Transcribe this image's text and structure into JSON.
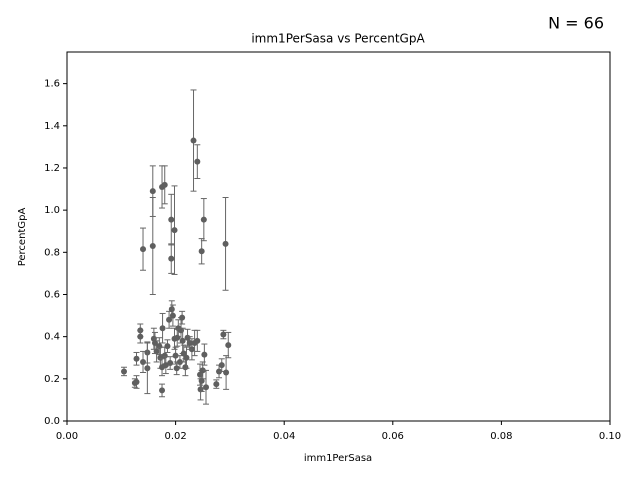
{
  "chart_data": {
    "type": "errorbar_scatter",
    "title": "imm1PerSasa vs PercentGpA",
    "annotation": "N = 66",
    "xlabel": "imm1PerSasa",
    "ylabel": "PercentGpA",
    "color": "#5f5f5f",
    "error_color": "#666666",
    "xlim": [
      0,
      0.1
    ],
    "ylim": [
      0,
      1.75
    ],
    "xticks": [
      {
        "value": 0,
        "label": "0.00"
      },
      {
        "value": 0.02,
        "label": "0.02"
      },
      {
        "value": 0.04,
        "label": "0.04"
      },
      {
        "value": 0.06,
        "label": "0.06"
      },
      {
        "value": 0.08,
        "label": "0.08"
      },
      {
        "value": 0.1,
        "label": "0.10"
      }
    ],
    "yticks": [
      {
        "value": 0,
        "label": "0.0"
      },
      {
        "value": 0.2,
        "label": "0.2"
      },
      {
        "value": 0.4,
        "label": "0.4"
      },
      {
        "value": 0.6,
        "label": "0.6"
      },
      {
        "value": 0.8,
        "label": "0.8"
      },
      {
        "value": 1,
        "label": "1.0"
      },
      {
        "value": 1.2,
        "label": "1.2"
      },
      {
        "value": 1.4,
        "label": "1.4"
      },
      {
        "value": 1.6,
        "label": "1.6"
      }
    ],
    "x": [
      0.0233,
      0.024,
      0.0158,
      0.0175,
      0.018,
      0.0192,
      0.0198,
      0.0252,
      0.014,
      0.0158,
      0.0192,
      0.0248,
      0.0292,
      0.0105,
      0.0125,
      0.0128,
      0.0135,
      0.0135,
      0.014,
      0.0148,
      0.0148,
      0.016,
      0.0165,
      0.017,
      0.0172,
      0.0175,
      0.0175,
      0.0176,
      0.018,
      0.0182,
      0.0188,
      0.019,
      0.0193,
      0.0195,
      0.0198,
      0.02,
      0.0202,
      0.0205,
      0.0208,
      0.021,
      0.0212,
      0.0213,
      0.0215,
      0.0218,
      0.022,
      0.0222,
      0.023,
      0.0235,
      0.0245,
      0.0246,
      0.0248,
      0.025,
      0.0253,
      0.0256,
      0.0275,
      0.028,
      0.0285,
      0.0288,
      0.0293,
      0.0297,
      0.0128,
      0.0162,
      0.0185,
      0.0203,
      0.0226,
      0.024
    ],
    "values": [
      1.33,
      1.23,
      1.09,
      1.11,
      1.12,
      0.955,
      0.905,
      0.955,
      0.815,
      0.83,
      0.77,
      0.805,
      0.84,
      0.235,
      0.18,
      0.295,
      0.43,
      0.4,
      0.28,
      0.325,
      0.25,
      0.39,
      0.33,
      0.355,
      0.3,
      0.255,
      0.145,
      0.44,
      0.31,
      0.265,
      0.48,
      0.275,
      0.53,
      0.5,
      0.39,
      0.31,
      0.25,
      0.44,
      0.28,
      0.43,
      0.49,
      0.38,
      0.32,
      0.255,
      0.3,
      0.395,
      0.34,
      0.37,
      0.22,
      0.15,
      0.19,
      0.24,
      0.315,
      0.16,
      0.175,
      0.235,
      0.265,
      0.41,
      0.23,
      0.36,
      0.185,
      0.37,
      0.355,
      0.395,
      0.37,
      0.38
    ],
    "errors": [
      0.24,
      0.08,
      0.12,
      0.1,
      0.09,
      0.12,
      0.21,
      0.1,
      0.1,
      0.23,
      0.07,
      0.06,
      0.22,
      0.02,
      0.02,
      0.03,
      0.03,
      0.03,
      0.05,
      0.05,
      0.12,
      0.05,
      0.05,
      0.04,
      0.05,
      0.04,
      0.03,
      0.07,
      0.04,
      0.04,
      0.04,
      0.03,
      0.04,
      0.05,
      0.05,
      0.04,
      0.03,
      0.04,
      0.03,
      0.06,
      0.03,
      0.06,
      0.04,
      0.04,
      0.05,
      0.04,
      0.05,
      0.06,
      0.05,
      0.05,
      0.05,
      0.04,
      0.05,
      0.08,
      0.02,
      0.03,
      0.03,
      0.02,
      0.08,
      0.06,
      0.03,
      0.05,
      0.03,
      0.04,
      0.03,
      0.05
    ]
  }
}
